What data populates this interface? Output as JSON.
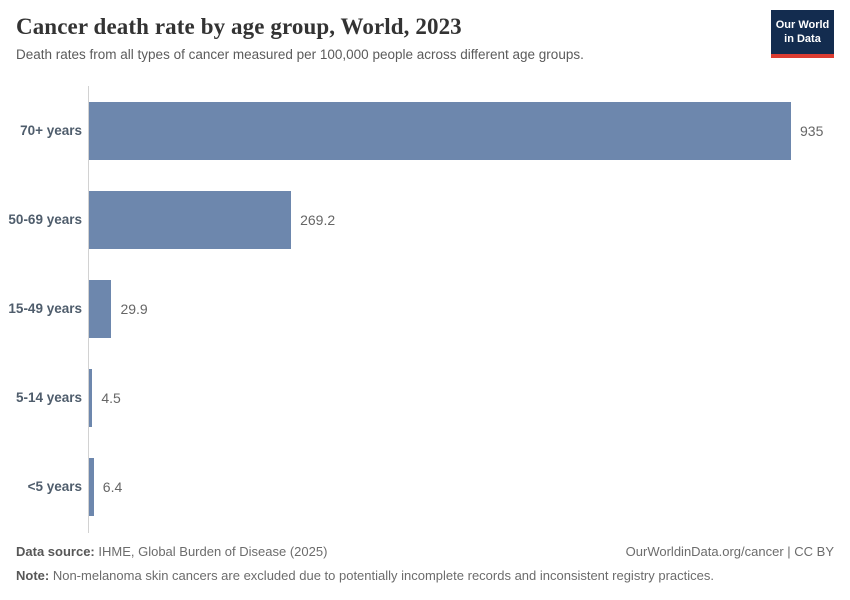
{
  "header": {
    "title": "Cancer death rate by age group, World, 2023",
    "subtitle": "Death rates from all types of cancer measured per 100,000 people across different age groups.",
    "logo": {
      "line1": "Our World",
      "line2": "in Data"
    }
  },
  "chart_data": {
    "type": "bar",
    "orientation": "horizontal",
    "title": "Cancer death rate by age group, World, 2023",
    "categories": [
      "70+ years",
      "50-69 years",
      "15-49 years",
      "5-14 years",
      "<5 years"
    ],
    "values": [
      935,
      269.2,
      29.9,
      4.5,
      6.4
    ],
    "value_labels": [
      "935",
      "269.2",
      "29.9",
      "4.5",
      "6.4"
    ],
    "xlabel": "",
    "ylabel": "",
    "xlim": [
      0,
      935
    ],
    "grid": false,
    "legend": false,
    "bar_color": "#6d87ad",
    "axis_color": "#d2d2d2"
  },
  "footer": {
    "data_source_label": "Data source:",
    "data_source": " IHME, Global Burden of Disease (2025)",
    "link": "OurWorldinData.org/cancer | CC BY",
    "note_label": "Note:",
    "note": " Non-melanoma skin cancers are excluded due to potentially incomplete records and inconsistent registry practices."
  }
}
